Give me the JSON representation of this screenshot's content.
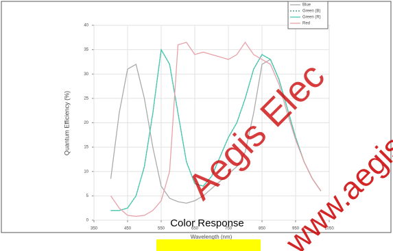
{
  "chart_data": {
    "type": "line",
    "x": [
      400,
      425,
      450,
      475,
      500,
      525,
      550,
      575,
      600,
      625,
      650,
      675,
      700,
      725,
      750,
      775,
      800,
      825,
      850,
      875,
      900,
      925,
      950,
      975,
      1000,
      1025
    ],
    "series": [
      {
        "name": "Blue",
        "color": "#aaaaaa",
        "dash": false,
        "values": [
          8.5,
          22,
          31,
          32,
          25,
          15,
          7,
          4.5,
          3.8,
          3.5,
          4,
          5,
          6.5,
          8,
          9.5,
          11,
          14,
          22,
          32,
          33,
          29,
          23,
          17,
          12,
          8.5,
          6
        ]
      },
      {
        "name": "Green (B)",
        "color": "#2e8b6e",
        "dash": true,
        "values": [
          2,
          2,
          2.5,
          5,
          11,
          22,
          35,
          32,
          22,
          12,
          7.5,
          7,
          9,
          13,
          17,
          20,
          25,
          31,
          34,
          33,
          29,
          23,
          17,
          12,
          8.5,
          6
        ]
      },
      {
        "name": "Green (R)",
        "color": "#48c9b0",
        "dash": false,
        "values": [
          2,
          2,
          2.5,
          5,
          11,
          22,
          35,
          32,
          22,
          12,
          7.5,
          7,
          9,
          13,
          17,
          20,
          25,
          31,
          34,
          33,
          29,
          23,
          17,
          12,
          8.5,
          6
        ]
      },
      {
        "name": "Red",
        "color": "#e8a0a8",
        "dash": false,
        "values": [
          5,
          2.5,
          1,
          0.8,
          1,
          2,
          4,
          10,
          36,
          36.5,
          34,
          34.5,
          34,
          33.5,
          33,
          34,
          36.5,
          34,
          33,
          32,
          28,
          22,
          16.5,
          12,
          8.5,
          6
        ]
      }
    ],
    "xlim": [
      350,
      1050
    ],
    "xticks": [
      350,
      450,
      550,
      650,
      750,
      850,
      950,
      1050
    ],
    "ylim": [
      0,
      40
    ],
    "yticks": [
      0,
      5,
      10,
      15,
      20,
      25,
      30,
      35,
      40
    ],
    "ylabel": "Quantum Efficiency (%)",
    "xlabel": "Wavelength (nm)",
    "caption": "Color Response",
    "watermark": [
      "Aegis Elec",
      "www.aegis"
    ],
    "grid": true,
    "legend": "top-right"
  }
}
